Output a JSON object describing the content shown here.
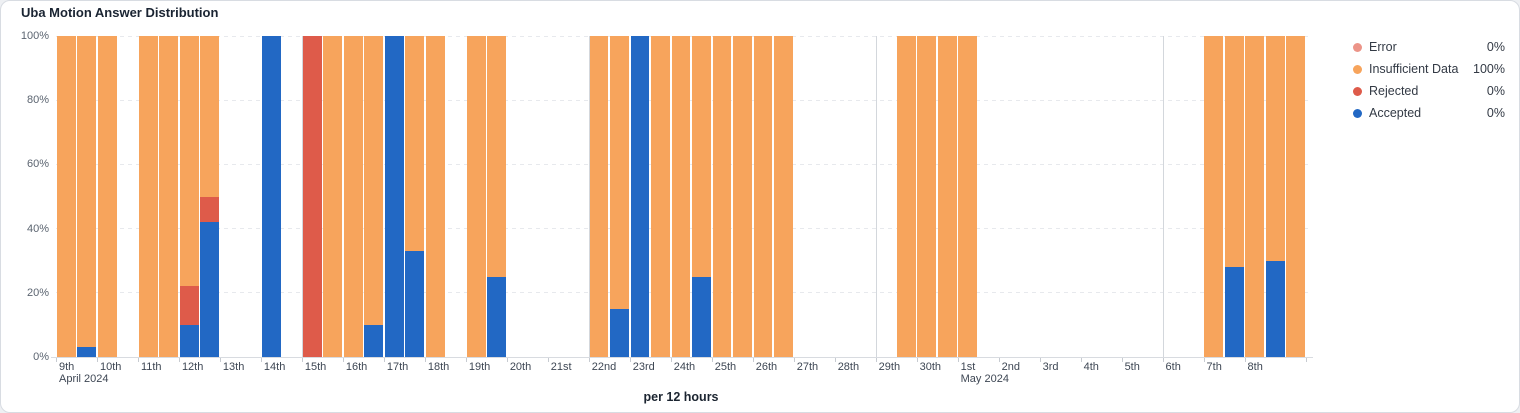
{
  "title": "Uba Motion Answer Distribution",
  "legend": [
    {
      "name": "Error",
      "value": "0%",
      "color": "#ec9488"
    },
    {
      "name": "Insufficient Data",
      "value": "100%",
      "color": "#f7a45c"
    },
    {
      "name": "Rejected",
      "value": "0%",
      "color": "#de5b4a"
    },
    {
      "name": "Accepted",
      "value": "0%",
      "color": "#2268c4"
    }
  ],
  "axis": {
    "unit_label": "per 12 hours",
    "y_tick_labels": [
      "100%",
      "80%",
      "60%",
      "40%",
      "20%",
      "0%"
    ]
  },
  "chart_data": {
    "type": "bar",
    "subtype": "stacked-percentage-time-series",
    "title": "Uba Motion Answer Distribution",
    "xlabel": "per 12 hours",
    "ylabel": "",
    "ylim": [
      0,
      100
    ],
    "y_ticks": [
      0,
      20,
      40,
      60,
      80,
      100
    ],
    "grid": "horizontal-dashed",
    "legend_position": "right",
    "bucket_hours": 12,
    "series_order_bottom_up": [
      "accepted",
      "rejected",
      "insufficient_data",
      "error"
    ],
    "series_colors": {
      "accepted": "#2268c4",
      "rejected": "#de5b4a",
      "insufficient_data": "#f7a45c",
      "error": "#ec9488"
    },
    "day_labels": [
      "9th",
      "10th",
      "11th",
      "12th",
      "13th",
      "14th",
      "15th",
      "16th",
      "17th",
      "18th",
      "19th",
      "20th",
      "21st",
      "22nd",
      "23rd",
      "24th",
      "25th",
      "26th",
      "27th",
      "28th",
      "29th",
      "30th",
      "1st",
      "2nd",
      "3rd",
      "4th",
      "5th",
      "6th",
      "7th",
      "8th"
    ],
    "month_labels": [
      {
        "day_index": 0,
        "label": "April 2024"
      },
      {
        "day_index": 22,
        "label": "May 2024"
      }
    ],
    "vlines": [
      {
        "day_index": 6,
        "kind": "week"
      },
      {
        "day_index": 13,
        "kind": "week"
      },
      {
        "day_index": 20,
        "kind": "week"
      },
      {
        "day_index": 22,
        "kind": "month"
      },
      {
        "day_index": 27,
        "kind": "week"
      }
    ],
    "slots": [
      {
        "x": "Apr 9 AM",
        "insufficient_data": 100
      },
      {
        "x": "Apr 9 PM",
        "accepted": 3,
        "insufficient_data": 97
      },
      {
        "x": "Apr 10 AM",
        "insufficient_data": 100
      },
      null,
      {
        "x": "Apr 11 AM",
        "insufficient_data": 100
      },
      {
        "x": "Apr 11 PM",
        "insufficient_data": 100
      },
      {
        "x": "Apr 12 AM",
        "accepted": 10,
        "rejected": 12,
        "insufficient_data": 78
      },
      {
        "x": "Apr 12 PM",
        "accepted": 42,
        "rejected": 8,
        "insufficient_data": 50
      },
      null,
      null,
      {
        "x": "Apr 14 AM",
        "accepted": 100
      },
      null,
      {
        "x": "Apr 15 AM",
        "rejected": 100
      },
      {
        "x": "Apr 15 PM",
        "insufficient_data": 100
      },
      {
        "x": "Apr 16 AM",
        "insufficient_data": 100
      },
      {
        "x": "Apr 16 PM",
        "accepted": 10,
        "insufficient_data": 90
      },
      {
        "x": "Apr 17 AM",
        "accepted": 100
      },
      {
        "x": "Apr 17 PM",
        "accepted": 33,
        "insufficient_data": 67
      },
      {
        "x": "Apr 18 AM",
        "insufficient_data": 100
      },
      null,
      {
        "x": "Apr 19 AM",
        "insufficient_data": 100
      },
      {
        "x": "Apr 19 PM",
        "accepted": 25,
        "insufficient_data": 75
      },
      null,
      null,
      null,
      null,
      {
        "x": "Apr 22 AM",
        "insufficient_data": 100
      },
      {
        "x": "Apr 22 PM",
        "accepted": 15,
        "insufficient_data": 85
      },
      {
        "x": "Apr 23 AM",
        "accepted": 100
      },
      {
        "x": "Apr 23 PM",
        "insufficient_data": 100
      },
      {
        "x": "Apr 24 AM",
        "insufficient_data": 100
      },
      {
        "x": "Apr 24 PM",
        "accepted": 25,
        "insufficient_data": 75
      },
      {
        "x": "Apr 25 AM",
        "insufficient_data": 100
      },
      {
        "x": "Apr 25 PM",
        "insufficient_data": 100
      },
      {
        "x": "Apr 26 AM",
        "insufficient_data": 100
      },
      {
        "x": "Apr 26 PM",
        "insufficient_data": 100
      },
      null,
      null,
      null,
      null,
      null,
      {
        "x": "Apr 29 PM",
        "insufficient_data": 100
      },
      {
        "x": "Apr 30 AM",
        "insufficient_data": 100
      },
      {
        "x": "Apr 30 PM",
        "insufficient_data": 100
      },
      {
        "x": "May 1 AM",
        "insufficient_data": 100
      },
      null,
      null,
      null,
      null,
      null,
      null,
      null,
      null,
      null,
      null,
      null,
      {
        "x": "May 7 AM",
        "insufficient_data": 100
      },
      {
        "x": "May 7 PM",
        "accepted": 28,
        "insufficient_data": 72
      },
      {
        "x": "May 8 AM",
        "insufficient_data": 100
      },
      {
        "x": "May 8 PM",
        "accepted": 30,
        "insufficient_data": 70
      },
      {
        "x": "May 9 AM",
        "insufficient_data": 100
      }
    ]
  }
}
